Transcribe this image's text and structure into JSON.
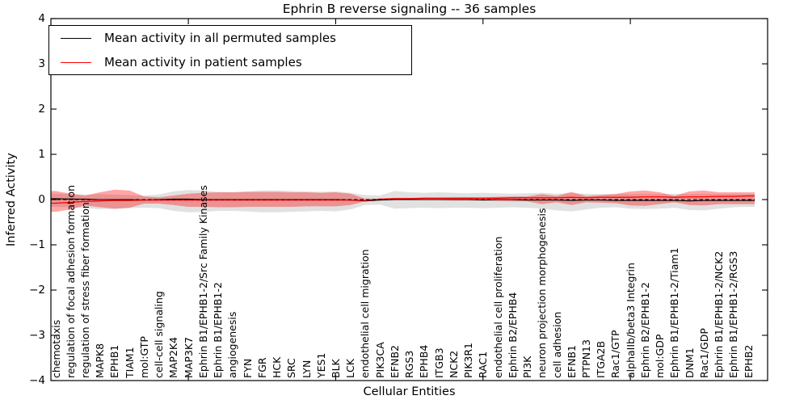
{
  "title": "Ephrin B reverse signaling -- 36 samples",
  "y_axis": {
    "label": "Inferred Activity",
    "tick_labels": [
      "4",
      "3",
      "2",
      "1",
      "0",
      "−1",
      "−2",
      "−3",
      "−4"
    ],
    "tick_values": [
      4,
      3,
      2,
      1,
      0,
      -1,
      -2,
      -3,
      -4
    ]
  },
  "x_axis": {
    "label": "Cellular Entities"
  },
  "legend": {
    "items": [
      {
        "label": "Mean activity in all permuted samples",
        "color": "#000000"
      },
      {
        "label": "Mean activity in patient samples",
        "color": "#ff0000"
      }
    ]
  },
  "colors": {
    "permuted_line": "#000000",
    "patient_line": "#ff0000",
    "permuted_band": "#aaaaaa",
    "patient_band": "#ff0000",
    "frame": "#000000"
  },
  "chart_data": {
    "type": "line",
    "title": "Ephrin B reverse signaling -- 36 samples",
    "xlabel": "Cellular Entities",
    "ylabel": "Inferred Activity",
    "ylim": [
      -4,
      4
    ],
    "grid": false,
    "legend_position": "upper left",
    "baseline": 0,
    "categories": [
      "chemotaxis",
      "regulation of focal adhesion formation",
      "regulation of stress fiber formation",
      "MAPK8",
      "EPHB1",
      "TIAM1",
      "mol:GTP",
      "cell-cell signaling",
      "MAP2K4",
      "MAP3K7",
      "Ephrin B1/EPHB1-2/Src Family Kinases",
      "Ephrin B1/EPHB1-2",
      "angiogenesis",
      "FYN",
      "FGR",
      "HCK",
      "SRC",
      "LYN",
      "YES1",
      "BLK",
      "LCK",
      "endothelial cell migration",
      "PIK3CA",
      "EFNB2",
      "RGS3",
      "EPHB4",
      "ITGB3",
      "NCK2",
      "PIK3R1",
      "RAC1",
      "endothelial cell proliferation",
      "Ephrin B2/EPHB4",
      "PI3K",
      "neuron projection morphogenesis",
      "cell adhesion",
      "EFNB1",
      "PTPN13",
      "ITGA2B",
      "Rac1/GTP",
      "alphaIIb/beta3 Integrin",
      "Ephrin B2/EPHB1-2",
      "mol:GDP",
      "Ephrin B1/EPHB1-2/Tiam1",
      "DNM1",
      "Rac1/GDP",
      "Ephrin B1/EPHB1-2/NCK2",
      "Ephrin B1/EPHB1-2/RGS3",
      "EPHB2"
    ],
    "series": [
      {
        "name": "Mean activity in all permuted samples",
        "color": "#000000",
        "style": "solid",
        "values": [
          0.02,
          0.01,
          0.01,
          0.0,
          0.0,
          0.0,
          -0.01,
          0.0,
          0.01,
          0.01,
          0.0,
          0.0,
          0.0,
          0.0,
          0.0,
          0.0,
          0.0,
          0.0,
          0.0,
          0.0,
          -0.01,
          -0.03,
          -0.01,
          0.0,
          0.0,
          0.0,
          0.0,
          0.0,
          0.0,
          -0.01,
          0.0,
          0.0,
          -0.01,
          -0.01,
          -0.01,
          -0.02,
          -0.01,
          -0.01,
          -0.02,
          -0.02,
          -0.02,
          -0.02,
          -0.02,
          -0.03,
          -0.02,
          -0.02,
          -0.02,
          -0.02
        ]
      },
      {
        "name": "Mean activity in patient samples",
        "color": "#ff0000",
        "style": "solid",
        "values": [
          -0.08,
          -0.06,
          -0.04,
          -0.03,
          -0.02,
          -0.02,
          -0.01,
          -0.01,
          -0.01,
          -0.01,
          -0.01,
          -0.01,
          -0.01,
          -0.01,
          -0.01,
          -0.01,
          -0.01,
          -0.01,
          -0.01,
          -0.01,
          -0.01,
          -0.02,
          0.01,
          0.02,
          0.02,
          0.03,
          0.03,
          0.03,
          0.03,
          0.03,
          0.03,
          0.04,
          0.04,
          0.04,
          0.04,
          0.05,
          0.04,
          0.05,
          0.05,
          0.05,
          0.06,
          0.06,
          0.05,
          0.06,
          0.06,
          0.07,
          0.07,
          0.08
        ]
      },
      {
        "name": "zero baseline",
        "color": "#000000",
        "style": "dashed",
        "values": [
          0,
          0,
          0,
          0,
          0,
          0,
          0,
          0,
          0,
          0,
          0,
          0,
          0,
          0,
          0,
          0,
          0,
          0,
          0,
          0,
          0,
          0,
          0,
          0,
          0,
          0,
          0,
          0,
          0,
          0,
          0,
          0,
          0,
          0,
          0,
          0,
          0,
          0,
          0,
          0,
          0,
          0,
          0,
          0,
          0,
          0,
          0,
          0
        ]
      }
    ],
    "bands": [
      {
        "name": "permuted samples activity range",
        "color": "#aaaaaa",
        "opacity": 0.35,
        "upper": [
          0.13,
          0.12,
          0.11,
          0.12,
          0.11,
          0.1,
          0.09,
          0.11,
          0.18,
          0.21,
          0.2,
          0.17,
          0.16,
          0.18,
          0.2,
          0.2,
          0.19,
          0.18,
          0.17,
          0.18,
          0.15,
          0.1,
          0.09,
          0.19,
          0.16,
          0.15,
          0.16,
          0.15,
          0.14,
          0.15,
          0.14,
          0.13,
          0.14,
          0.15,
          0.13,
          0.14,
          0.13,
          0.12,
          0.13,
          0.12,
          0.13,
          0.12,
          0.13,
          0.12,
          0.13,
          0.12,
          0.12,
          0.12
        ],
        "lower": [
          -0.16,
          -0.17,
          -0.19,
          -0.21,
          -0.21,
          -0.19,
          -0.18,
          -0.19,
          -0.25,
          -0.28,
          -0.27,
          -0.25,
          -0.25,
          -0.26,
          -0.28,
          -0.28,
          -0.27,
          -0.26,
          -0.25,
          -0.26,
          -0.22,
          -0.12,
          -0.11,
          -0.2,
          -0.19,
          -0.18,
          -0.19,
          -0.18,
          -0.18,
          -0.19,
          -0.18,
          -0.17,
          -0.18,
          -0.2,
          -0.24,
          -0.26,
          -0.22,
          -0.18,
          -0.17,
          -0.2,
          -0.21,
          -0.2,
          -0.18,
          -0.23,
          -0.24,
          -0.2,
          -0.17,
          -0.16
        ]
      },
      {
        "name": "patient samples activity range",
        "color": "#ff0000",
        "opacity": 0.35,
        "upper": [
          0.19,
          0.13,
          0.09,
          0.16,
          0.22,
          0.2,
          0.07,
          0.05,
          0.09,
          0.13,
          0.15,
          0.16,
          0.16,
          0.17,
          0.17,
          0.17,
          0.16,
          0.16,
          0.15,
          0.16,
          0.13,
          0.02,
          0.02,
          0.04,
          0.04,
          0.04,
          0.04,
          0.05,
          0.05,
          0.05,
          0.06,
          0.07,
          0.07,
          0.12,
          0.08,
          0.17,
          0.08,
          0.1,
          0.12,
          0.18,
          0.2,
          0.16,
          0.08,
          0.18,
          0.2,
          0.16,
          0.16,
          0.16
        ],
        "lower": [
          -0.27,
          -0.22,
          -0.13,
          -0.17,
          -0.2,
          -0.18,
          -0.09,
          -0.09,
          -0.12,
          -0.16,
          -0.16,
          -0.17,
          -0.17,
          -0.16,
          -0.16,
          -0.16,
          -0.16,
          -0.15,
          -0.15,
          -0.15,
          -0.12,
          -0.04,
          -0.02,
          -0.01,
          -0.01,
          -0.01,
          -0.01,
          -0.02,
          -0.02,
          -0.02,
          -0.03,
          -0.04,
          -0.04,
          -0.1,
          -0.06,
          -0.12,
          -0.06,
          -0.07,
          -0.08,
          -0.13,
          -0.14,
          -0.1,
          -0.06,
          -0.12,
          -0.13,
          -0.1,
          -0.1,
          -0.1
        ]
      }
    ],
    "top_tick_indices": [
      9,
      19,
      29,
      39
    ]
  }
}
